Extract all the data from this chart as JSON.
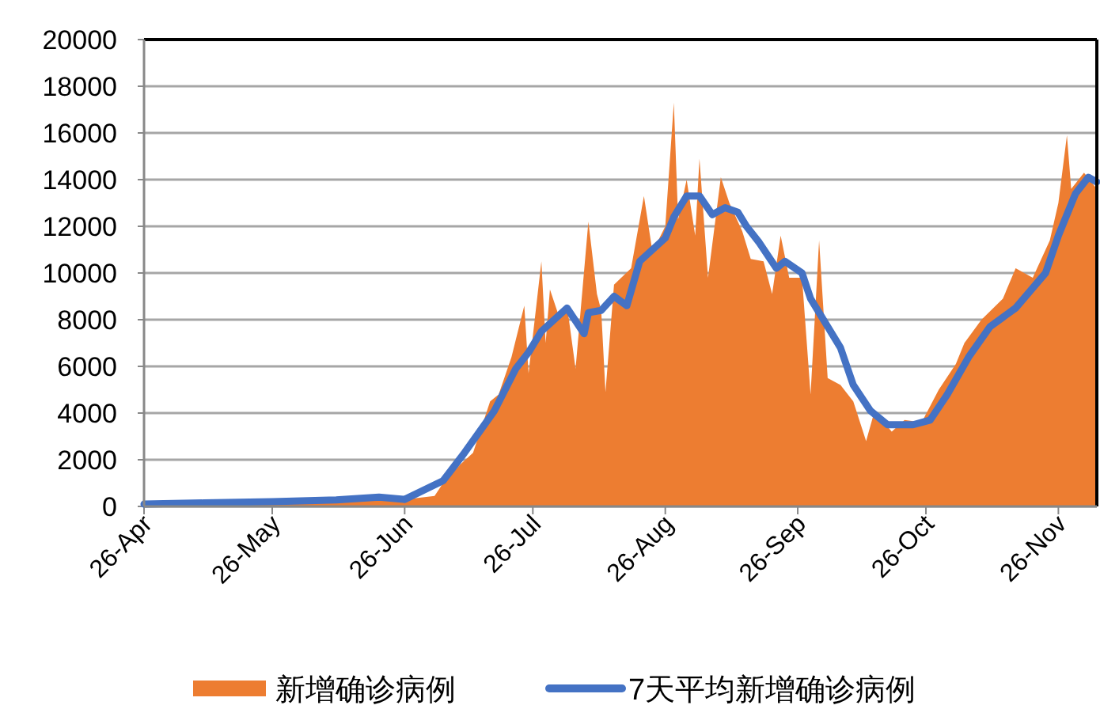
{
  "chart_data": {
    "type": "area",
    "series": [
      {
        "name": "新增确诊病例",
        "color": "#ed7d31",
        "x": [
          "--04-26",
          "--05-10",
          "--05-26",
          "--06-10",
          "--06-20",
          "--06-26",
          "--07-03",
          "--07-05",
          "--07-09",
          "--07-12",
          "--07-16",
          "--07-18",
          "--07-21",
          "--07-24",
          "--07-25",
          "--07-28",
          "--07-29",
          "--07-30",
          "--08-01",
          "--08-03",
          "--08-05",
          "--08-08",
          "--08-10",
          "--08-11",
          "--08-12",
          "--08-14",
          "--08-18",
          "--08-21",
          "--08-23",
          "--08-26",
          "--08-28",
          "--08-29",
          "--08-31",
          "--09-02",
          "--09-03",
          "--09-05",
          "--09-08",
          "--09-10",
          "--09-13",
          "--09-15",
          "--09-18",
          "--09-20",
          "--09-22",
          "--09-24",
          "--09-27",
          "--09-29",
          "--10-01",
          "--10-03",
          "--10-06",
          "--10-09",
          "--10-12",
          "--10-14",
          "--10-18",
          "--10-21",
          "--10-25",
          "--10-29",
          "--11-02",
          "--11-04",
          "--11-08",
          "--11-13",
          "--11-16",
          "--11-20",
          "--11-24",
          "--11-26",
          "--11-28",
          "--11-29",
          "--12-02",
          "--12-05"
        ],
        "values": [
          100,
          150,
          200,
          250,
          400,
          300,
          450,
          1000,
          1800,
          2300,
          4500,
          4800,
          6400,
          8600,
          5700,
          10500,
          7000,
          9300,
          8200,
          8600,
          5900,
          12200,
          9100,
          8400,
          4900,
          9500,
          10200,
          13300,
          10900,
          12000,
          17300,
          12300,
          14000,
          11600,
          14900,
          9800,
          14100,
          13000,
          11800,
          10600,
          10500,
          9100,
          11600,
          9800,
          9800,
          4800,
          11400,
          5500,
          5200,
          4500,
          2800,
          4100,
          3200,
          3700,
          3600,
          5000,
          6100,
          7000,
          8000,
          8900,
          10200,
          9800,
          11400,
          13000,
          15900,
          13600,
          14300,
          13600
        ]
      },
      {
        "name": "7天平均新增确诊病例",
        "type": "line",
        "color": "#4472c4",
        "x": [
          "--04-26",
          "--05-10",
          "--05-26",
          "--06-10",
          "--06-20",
          "--06-26",
          "--07-05",
          "--07-10",
          "--07-17",
          "--07-22",
          "--07-25",
          "--07-28",
          "--08-03",
          "--08-07",
          "--08-08",
          "--08-11",
          "--08-14",
          "--08-17",
          "--08-20",
          "--08-26",
          "--08-28",
          "--08-31",
          "--09-03",
          "--09-06",
          "--09-09",
          "--09-12",
          "--09-14",
          "--09-17",
          "--09-21",
          "--09-23",
          "--09-27",
          "--09-29",
          "--10-06",
          "--10-09",
          "--10-13",
          "--10-17",
          "--10-23",
          "--10-27",
          "--10-31",
          "--11-05",
          "--11-10",
          "--11-16",
          "--11-23",
          "--11-26",
          "--11-30",
          "--12-03",
          "--12-05"
        ],
        "values": [
          100,
          150,
          200,
          280,
          400,
          300,
          1100,
          2300,
          4100,
          5900,
          6600,
          7500,
          8500,
          7400,
          8300,
          8400,
          9000,
          8600,
          10500,
          11500,
          12400,
          13300,
          13300,
          12500,
          12800,
          12600,
          12000,
          11300,
          10200,
          10500,
          10000,
          8900,
          6800,
          5200,
          4100,
          3500,
          3500,
          3700,
          4800,
          6400,
          7700,
          8500,
          10000,
          11600,
          13400,
          14100,
          13900
        ]
      }
    ],
    "xlim": [
      "--04-26",
      "--12-05"
    ],
    "xticks": [
      {
        "value": "--04-26",
        "label": "26-Apr"
      },
      {
        "value": "--05-26",
        "label": "26-May"
      },
      {
        "value": "--06-26",
        "label": "26-Jun"
      },
      {
        "value": "--07-26",
        "label": "26-Jul"
      },
      {
        "value": "--08-26",
        "label": "26-Aug"
      },
      {
        "value": "--09-26",
        "label": "26-Sep"
      },
      {
        "value": "--10-26",
        "label": "26-Oct"
      },
      {
        "value": "--11-26",
        "label": "26-Nov"
      }
    ],
    "ylim": [
      0,
      20000
    ],
    "yticks": [
      0,
      2000,
      4000,
      6000,
      8000,
      10000,
      12000,
      14000,
      16000,
      18000,
      20000
    ],
    "grid": "y",
    "legend": "bottom"
  }
}
